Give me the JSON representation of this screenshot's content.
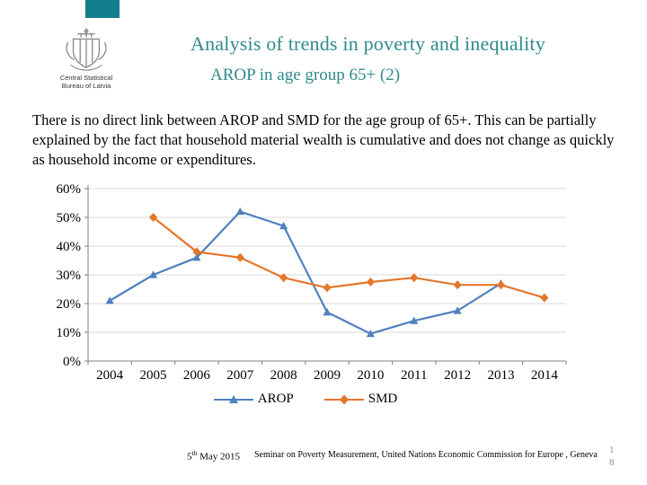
{
  "colors": {
    "accent_teal": "#127f8c",
    "title_teal": "#2f8b8c",
    "grid_gray": "#d9d9d9",
    "axis_gray": "#7f7f7f",
    "page_number_gray": "#8496ab"
  },
  "header": {
    "title": "Analysis of trends in poverty and inequality",
    "subtitle": "AROP in age group 65+ (2)"
  },
  "logo": {
    "line1": "Central Statistical",
    "line2": "Bureau of Latvia"
  },
  "body_text": "There is no direct link between AROP and SMD for the age group of 65+. This can be partially explained by the fact that household material wealth is cumulative and does not change as quickly as household income or expenditures.",
  "footer": {
    "date_day": "5",
    "date_ordinal": "th",
    "date_rest": " May 2015",
    "seminar": "Seminar on Poverty Measurement, United Nations Economic Commission for Europe , Geneva",
    "page_line1": "1",
    "page_line2": "8"
  },
  "chart_data": {
    "type": "line",
    "title": "",
    "categories": [
      "2004",
      "2005",
      "2006",
      "2007",
      "2008",
      "2009",
      "2010",
      "2011",
      "2012",
      "2013",
      "2014"
    ],
    "series": [
      {
        "name": "AROP",
        "marker": "triangle",
        "color": "#4f81bd",
        "values": [
          21,
          30,
          36,
          52,
          47,
          17,
          9.5,
          14,
          17.5,
          27,
          null
        ]
      },
      {
        "name": "SMD",
        "marker": "diamond",
        "color": "#e5762d",
        "values": [
          null,
          50,
          38,
          36,
          29,
          25.5,
          27.5,
          29,
          26.5,
          26.5,
          22
        ]
      }
    ],
    "xlabel": "",
    "ylabel": "",
    "ylim": [
      0,
      60
    ],
    "ytick_step": 10,
    "ytick_suffix": "%",
    "grid": true,
    "legend_position": "bottom"
  }
}
